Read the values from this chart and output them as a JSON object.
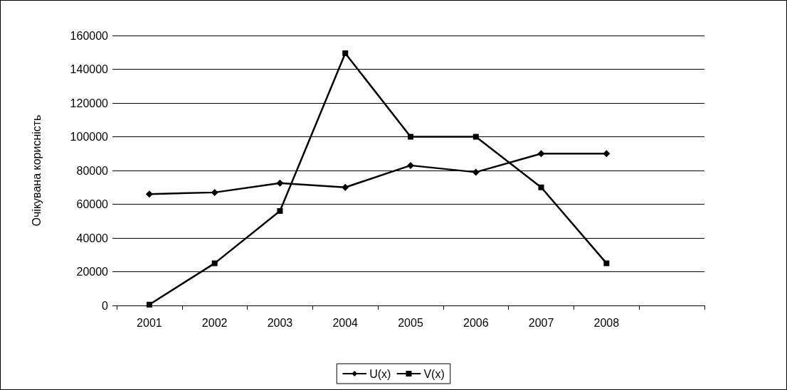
{
  "chart_data": {
    "type": "line",
    "ylabel": "Очікувана корисність",
    "categories": [
      "2001",
      "2002",
      "2003",
      "2004",
      "2005",
      "2006",
      "2007",
      "2008",
      null
    ],
    "series": [
      {
        "name": "U(x)",
        "color": "#000000",
        "marker": "diamond",
        "values": [
          66000,
          67000,
          72500,
          70000,
          83000,
          79000,
          90000,
          90000,
          null
        ]
      },
      {
        "name": "V(x)",
        "color": "#000000",
        "marker": "square",
        "values": [
          500,
          25000,
          56000,
          149500,
          100000,
          100000,
          70000,
          25000,
          null
        ]
      }
    ],
    "ylim": [
      0,
      160000
    ],
    "yticks": [
      0,
      20000,
      40000,
      60000,
      80000,
      100000,
      120000,
      140000,
      160000
    ],
    "grid": "y",
    "legend": "bottom",
    "line_style": "solid"
  }
}
